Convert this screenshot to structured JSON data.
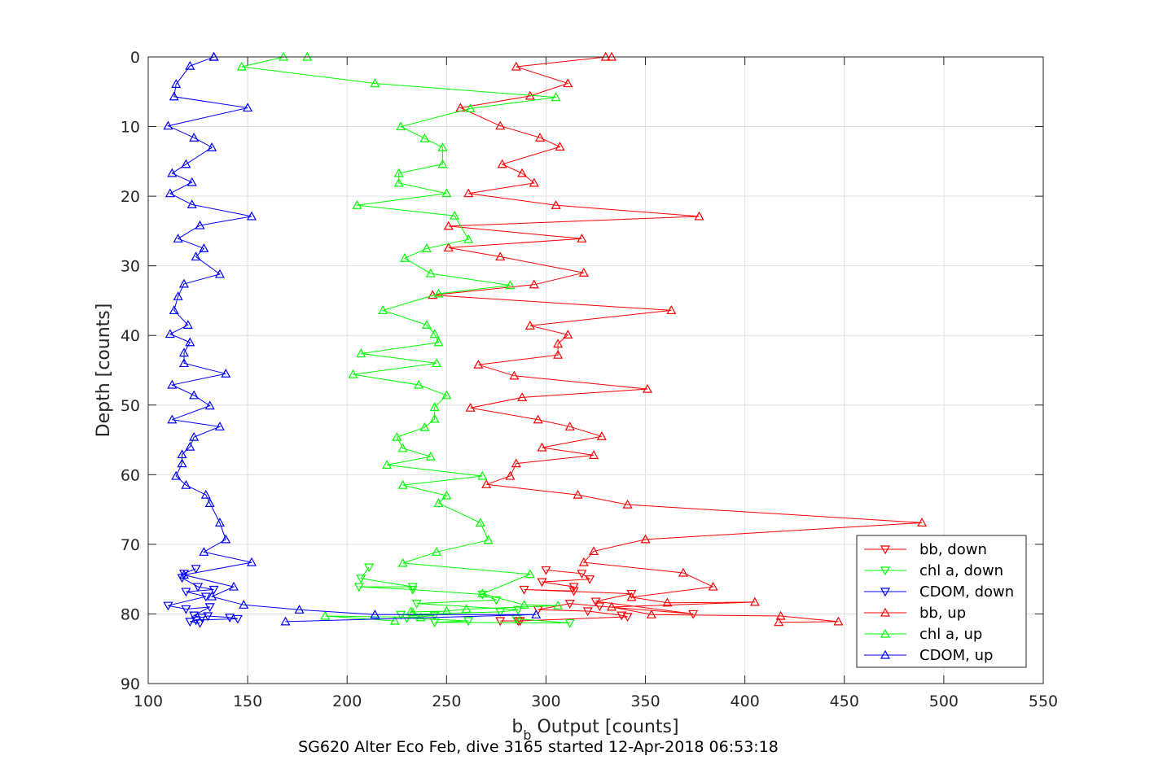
{
  "chart_data": {
    "type": "line",
    "title": "",
    "caption": "SG620 Alter Eco Feb, dive 3165 started 12-Apr-2018 06:53:18",
    "xlabel_main": "b",
    "xlabel_sub": "b",
    "xlabel_rest": " Output [counts]",
    "ylabel": "Depth [counts]",
    "xlim": [
      100,
      550
    ],
    "ylim": [
      0,
      90
    ],
    "y_reversed": true,
    "xticks": [
      "100",
      "150",
      "200",
      "250",
      "300",
      "350",
      "400",
      "450",
      "500",
      "550"
    ],
    "yticks": [
      "0",
      "10",
      "20",
      "30",
      "40",
      "50",
      "60",
      "70",
      "80",
      "90"
    ],
    "grid": true,
    "legend_position": "bottom-right",
    "colors": {
      "red": "#ff0000",
      "green": "#00ff00",
      "blue": "#0000ff"
    },
    "series": [
      {
        "name": "bb, down",
        "color": "#ff0000",
        "marker": "triangle-down",
        "x": [
          300,
          318,
          322,
          298,
          314,
          314,
          289,
          343,
          325,
          374,
          327,
          312,
          296,
          321,
          338,
          341,
          287,
          277,
          286
        ],
        "y": [
          73.7,
          74.2,
          75.0,
          75.4,
          76.1,
          76.7,
          76.5,
          77.1,
          78.2,
          80.0,
          78.9,
          78.5,
          79.4,
          79.6,
          80.2,
          80.4,
          81.0,
          81.0,
          81.0
        ]
      },
      {
        "name": "chl a, down",
        "color": "#00ff00",
        "marker": "triangle-down",
        "x": [
          211,
          207,
          233,
          206,
          233,
          268,
          275,
          235,
          286,
          277,
          227,
          244,
          230,
          261,
          244,
          312,
          285
        ],
        "y": [
          73.3,
          74.9,
          76.1,
          76.1,
          76.5,
          77.2,
          78.0,
          78.5,
          79.4,
          79.7,
          80.1,
          80.2,
          80.6,
          81.0,
          81.2,
          81.3,
          80.7
        ]
      },
      {
        "name": "CDOM, down",
        "color": "#0000ff",
        "marker": "triangle-down",
        "x": [
          124,
          118,
          117,
          125,
          133,
          119,
          129,
          110,
          119,
          131,
          123,
          127,
          130,
          141,
          145,
          124,
          121,
          126
        ],
        "y": [
          73.5,
          74.2,
          74.8,
          76.1,
          76.5,
          76.8,
          77.5,
          78.8,
          79.3,
          79.0,
          80.2,
          80.5,
          80.3,
          80.5,
          80.7,
          80.9,
          81.1,
          81.3
        ]
      },
      {
        "name": "bb, up",
        "color": "#ff0000",
        "marker": "triangle-up",
        "x": [
          333,
          330,
          285,
          311,
          292,
          257,
          277,
          297,
          307,
          278,
          288,
          294,
          261,
          305,
          377,
          251,
          318,
          251,
          277,
          319,
          294,
          243,
          363,
          292,
          311,
          306,
          306,
          266,
          284,
          351,
          288,
          262,
          296,
          312,
          328,
          298,
          324,
          285,
          282,
          270,
          316,
          341,
          489,
          350,
          324,
          319,
          369,
          384,
          343,
          361,
          405,
          333,
          353,
          418,
          447,
          417
        ],
        "y": [
          0,
          0,
          1.4,
          3.8,
          5.6,
          7.3,
          9.9,
          11.6,
          12.9,
          15.4,
          16.7,
          18.1,
          19.6,
          21.3,
          22.9,
          24.3,
          26.1,
          27.4,
          28.7,
          31.0,
          32.7,
          34.2,
          36.4,
          38.6,
          39.9,
          41.2,
          42.8,
          44.2,
          45.8,
          47.7,
          48.9,
          50.4,
          52.1,
          53.1,
          54.5,
          56.1,
          57.2,
          58.4,
          60.2,
          61.4,
          62.9,
          64.3,
          66.9,
          69.3,
          71.0,
          72.6,
          74.1,
          76.1,
          77.6,
          78.4,
          78.3,
          79.0,
          80.1,
          80.3,
          81.1,
          81.2
        ]
      },
      {
        "name": "chl a, up",
        "color": "#00ff00",
        "marker": "triangle-up",
        "x": [
          180,
          168,
          147,
          214,
          305,
          262,
          227,
          239,
          248,
          248,
          226,
          226,
          250,
          205,
          254,
          261,
          240,
          229,
          242,
          282,
          246,
          218,
          240,
          244,
          246,
          207,
          245,
          203,
          236,
          250,
          244,
          244,
          239,
          225,
          228,
          242,
          220,
          268,
          228,
          250,
          246,
          267,
          271,
          245,
          228,
          292,
          268,
          289,
          306,
          260,
          250,
          232,
          233,
          237,
          189,
          224
        ],
        "y": [
          0,
          0,
          1.4,
          3.8,
          5.8,
          7.4,
          10.0,
          11.7,
          13.0,
          15.4,
          16.7,
          18.1,
          19.6,
          21.3,
          22.8,
          26.2,
          27.5,
          28.9,
          31.1,
          32.8,
          34.0,
          36.4,
          38.5,
          39.8,
          41.0,
          42.6,
          44.0,
          45.6,
          47.1,
          48.6,
          50.3,
          52.0,
          53.2,
          54.6,
          56.2,
          57.4,
          58.6,
          60.2,
          61.5,
          63.0,
          64.1,
          66.9,
          69.4,
          71.1,
          72.7,
          74.3,
          77.1,
          78.7,
          78.8,
          79.3,
          79.6,
          79.7,
          79.8,
          80.5,
          80.3,
          81.0
        ]
      },
      {
        "name": "CDOM, up",
        "color": "#0000ff",
        "marker": "triangle-up",
        "x": [
          133,
          133,
          121,
          114,
          113,
          150,
          110,
          123,
          132,
          119,
          112,
          122,
          111,
          122,
          152,
          126,
          115,
          128,
          124,
          136,
          118,
          115,
          113,
          120,
          111,
          121,
          118,
          118,
          139,
          112,
          123,
          131,
          112,
          136,
          123,
          121,
          117,
          117,
          114,
          119,
          129,
          131,
          136,
          139,
          128,
          152,
          118,
          143,
          132,
          148,
          176,
          214,
          295,
          169
        ],
        "y": [
          0,
          0,
          1.3,
          3.9,
          5.7,
          7.3,
          9.9,
          11.6,
          13.0,
          15.4,
          16.7,
          18.0,
          19.6,
          21.2,
          22.9,
          24.2,
          26.1,
          27.5,
          28.7,
          31.2,
          32.6,
          34.4,
          36.4,
          38.5,
          39.8,
          41.0,
          42.5,
          44.0,
          45.5,
          47.1,
          48.6,
          50.1,
          52.1,
          53.1,
          54.6,
          56.0,
          57.1,
          58.4,
          60.2,
          61.5,
          62.9,
          64.1,
          66.9,
          69.3,
          71.1,
          72.6,
          74.4,
          76.1,
          77.5,
          78.7,
          79.4,
          80.1,
          80.1,
          81.1
        ]
      }
    ]
  }
}
